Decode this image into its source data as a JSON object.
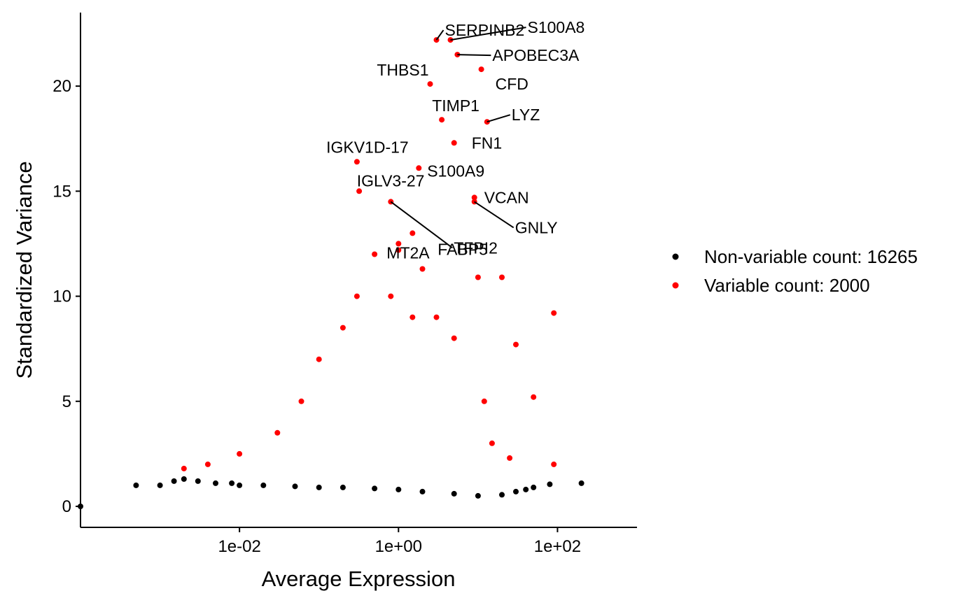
{
  "chart_data": {
    "type": "scatter",
    "title": "",
    "xlabel": "Average Expression",
    "ylabel": "Standardized Variance",
    "x_scale": "log10",
    "xlim": [
      0.0001,
      1000
    ],
    "ylim": [
      -1,
      23.5
    ],
    "x_ticks": [
      {
        "value": 0.01,
        "label": "1e-02"
      },
      {
        "value": 1,
        "label": "1e+00"
      },
      {
        "value": 100,
        "label": "1e+02"
      }
    ],
    "y_ticks": [
      {
        "value": 0,
        "label": "0"
      },
      {
        "value": 5,
        "label": "5"
      },
      {
        "value": 10,
        "label": "10"
      },
      {
        "value": 15,
        "label": "15"
      },
      {
        "value": 20,
        "label": "20"
      }
    ],
    "grid": false,
    "legend_position": "right",
    "series": [
      {
        "name": "Non-variable count: 16265",
        "color": "#000000",
        "points": [
          [
            0.0001,
            0.0
          ],
          [
            0.0005,
            1.0
          ],
          [
            0.001,
            1.0
          ],
          [
            0.0015,
            1.2
          ],
          [
            0.002,
            1.3
          ],
          [
            0.003,
            1.2
          ],
          [
            0.005,
            1.1
          ],
          [
            0.008,
            1.1
          ],
          [
            0.01,
            1.0
          ],
          [
            0.02,
            1.0
          ],
          [
            0.05,
            0.95
          ],
          [
            0.1,
            0.9
          ],
          [
            0.2,
            0.9
          ],
          [
            0.5,
            0.85
          ],
          [
            1,
            0.8
          ],
          [
            2,
            0.7
          ],
          [
            5,
            0.6
          ],
          [
            10,
            0.5
          ],
          [
            20,
            0.55
          ],
          [
            30,
            0.7
          ],
          [
            40,
            0.8
          ],
          [
            50,
            0.9
          ],
          [
            80,
            1.05
          ],
          [
            200,
            1.1
          ]
        ]
      },
      {
        "name": "Variable count: 2000",
        "color": "#ff0000",
        "points": [
          [
            0.002,
            1.8
          ],
          [
            0.004,
            2.0
          ],
          [
            0.01,
            2.5
          ],
          [
            0.03,
            3.5
          ],
          [
            0.06,
            5.0
          ],
          [
            0.1,
            7.0
          ],
          [
            0.2,
            8.5
          ],
          [
            0.3,
            10.0
          ],
          [
            0.5,
            12.0
          ],
          [
            0.8,
            10.0
          ],
          [
            1.0,
            12.5
          ],
          [
            1.5,
            9.0
          ],
          [
            2.0,
            11.3
          ],
          [
            3.0,
            9.0
          ],
          [
            5.0,
            8.0
          ],
          [
            10.0,
            10.9
          ],
          [
            20.0,
            10.9
          ],
          [
            30.0,
            7.7
          ],
          [
            50.0,
            5.2
          ],
          [
            90.0,
            9.2
          ],
          [
            90.0,
            2.0
          ],
          [
            25.0,
            2.3
          ],
          [
            12.0,
            5.0
          ],
          [
            15.0,
            3.0
          ]
        ]
      }
    ],
    "annotations": [
      {
        "label": "SERPINB2",
        "x": 3.0,
        "y": 22.2
      },
      {
        "label": "S100A8",
        "x": 4.5,
        "y": 22.2
      },
      {
        "label": "APOBEC3A",
        "x": 5.5,
        "y": 21.5
      },
      {
        "label": "THBS1",
        "x": 2.5,
        "y": 20.1
      },
      {
        "label": "CFD",
        "x": 11.0,
        "y": 20.8
      },
      {
        "label": "TIMP1",
        "x": 3.5,
        "y": 18.4
      },
      {
        "label": "LYZ",
        "x": 13.0,
        "y": 18.3
      },
      {
        "label": "FN1",
        "x": 5.0,
        "y": 17.3
      },
      {
        "label": "IGKV1D-17",
        "x": 0.3,
        "y": 16.4
      },
      {
        "label": "S100A9",
        "x": 1.8,
        "y": 16.1
      },
      {
        "label": "IGLV3-27",
        "x": 0.32,
        "y": 15.0
      },
      {
        "label": "VCAN",
        "x": 9.0,
        "y": 14.7
      },
      {
        "label": "GNLY",
        "x": 9.0,
        "y": 14.5
      },
      {
        "label": "FABP5",
        "x": 1.5,
        "y": 13.0
      },
      {
        "label": "TFPI2",
        "x": 0.8,
        "y": 14.5
      },
      {
        "label": "MT2A",
        "x": 1.0,
        "y": 12.2
      }
    ]
  }
}
